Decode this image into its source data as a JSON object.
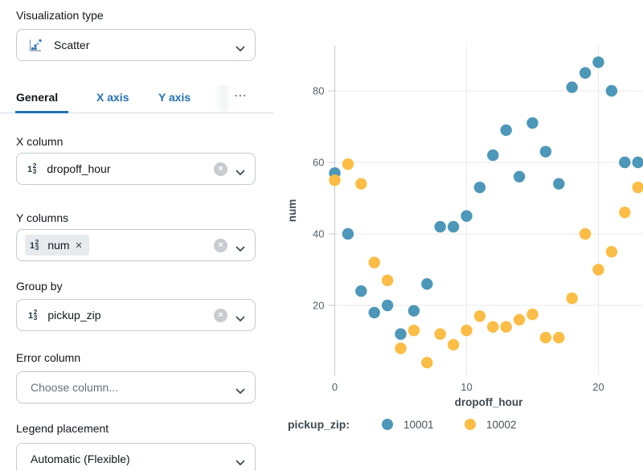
{
  "panel": {
    "viz_type": {
      "label": "Visualization type",
      "value": "Scatter"
    },
    "tabs": {
      "items": [
        {
          "label": "General",
          "active": true
        },
        {
          "label": "X axis",
          "active": false
        },
        {
          "label": "Y axis",
          "active": false
        }
      ],
      "overflow_glyph": "⋯"
    },
    "number_icon": {
      "main": "1",
      "sup": "2",
      "sub": "3"
    },
    "clear_glyph": "×",
    "fields": {
      "x_column": {
        "label": "X column",
        "value": "dropoff_hour"
      },
      "y_columns": {
        "label": "Y columns",
        "chip": "num",
        "chip_remove": "×"
      },
      "group_by": {
        "label": "Group by",
        "value": "pickup_zip"
      },
      "error_column": {
        "label": "Error column",
        "placeholder": "Choose column..."
      },
      "legend_placement": {
        "label": "Legend placement",
        "value": "Automatic (Flexible)"
      }
    }
  },
  "colors": {
    "accent_blue": "#2272B4",
    "series_blue": "#4D97B8",
    "series_yellow": "#FBBD45",
    "grid": "#E8EAEC",
    "axis_line": "#C5CACF",
    "tick_text": "#53606B",
    "axis_title_text": "#3E4A52"
  },
  "chart_data": {
    "type": "scatter",
    "x": [
      0,
      1,
      2,
      3,
      4,
      5,
      6,
      7,
      8,
      9,
      10,
      11,
      12,
      13,
      14,
      15,
      16,
      17,
      18,
      19,
      20,
      21,
      22,
      23
    ],
    "series": [
      {
        "name": "10001",
        "color": "#4D97B8",
        "values": [
          57,
          40,
          24,
          18,
          20,
          12,
          18.5,
          26,
          42,
          42,
          45,
          53,
          62,
          69,
          56,
          71,
          63,
          54,
          81,
          85,
          88,
          80,
          60,
          60
        ]
      },
      {
        "name": "10002",
        "color": "#FBBD45",
        "values": [
          55,
          59.5,
          54,
          32,
          27,
          8,
          13,
          4,
          12,
          9,
          13,
          17,
          14,
          14,
          16,
          17.5,
          11,
          11,
          22,
          40,
          30,
          35,
          46,
          53
        ]
      }
    ],
    "title": "",
    "xlabel": "dropoff_hour",
    "ylabel": "num",
    "legend_title": "pickup_zip:",
    "xticks": [
      0,
      10,
      20
    ],
    "yticks": [
      20,
      40,
      60,
      80
    ],
    "xlim": [
      -0.5,
      23.5
    ],
    "ylim": [
      0,
      92
    ],
    "grid": true,
    "legend_position": "bottom"
  }
}
